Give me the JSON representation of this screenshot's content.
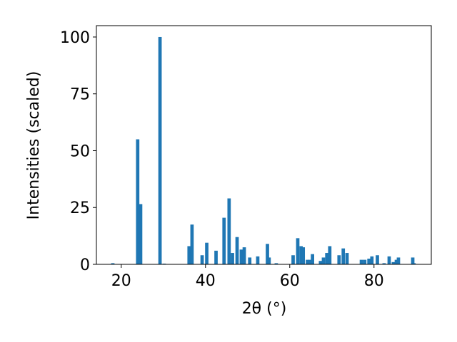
{
  "chart_data": {
    "type": "bar",
    "xlabel": "2θ (°)",
    "ylabel": "Intensities (scaled)",
    "color": "#1f77b4",
    "x": [
      18,
      23.9,
      24.6,
      29.2,
      30.2,
      36.1,
      36.8,
      39.2,
      40.3,
      42.5,
      44.4,
      45.6,
      46.4,
      47.5,
      48.5,
      49.2,
      50.5,
      52.4,
      54.7,
      55.1,
      56.8,
      60.8,
      61.9,
      62.7,
      63.2,
      64.2,
      64.7,
      65.4,
      67.3,
      68,
      68.8,
      69.5,
      71.7,
      72.7,
      73.6,
      77,
      77.8,
      78.8,
      79.5,
      80.8,
      82.4,
      83.6,
      84.6,
      85.3,
      85.8,
      89.2,
      89.5
    ],
    "values": [
      0.5,
      55,
      26.5,
      100,
      0.3,
      8,
      17.5,
      4,
      9.5,
      6,
      20.5,
      29,
      5,
      12,
      6.5,
      7.5,
      3,
      3.5,
      9,
      3,
      0.5,
      4,
      11.5,
      8,
      7.5,
      2,
      2,
      4.5,
      1.5,
      3,
      5,
      8,
      4,
      7,
      5,
      2,
      2,
      2.5,
      3.5,
      4,
      0.5,
      3.5,
      1,
      2,
      3,
      3,
      0.5
    ],
    "xlim": [
      14.1,
      93.6
    ],
    "ylim": [
      0,
      105
    ],
    "xticks": [
      20,
      40,
      60,
      80
    ],
    "yticks": [
      0,
      25,
      50,
      75,
      100
    ]
  }
}
